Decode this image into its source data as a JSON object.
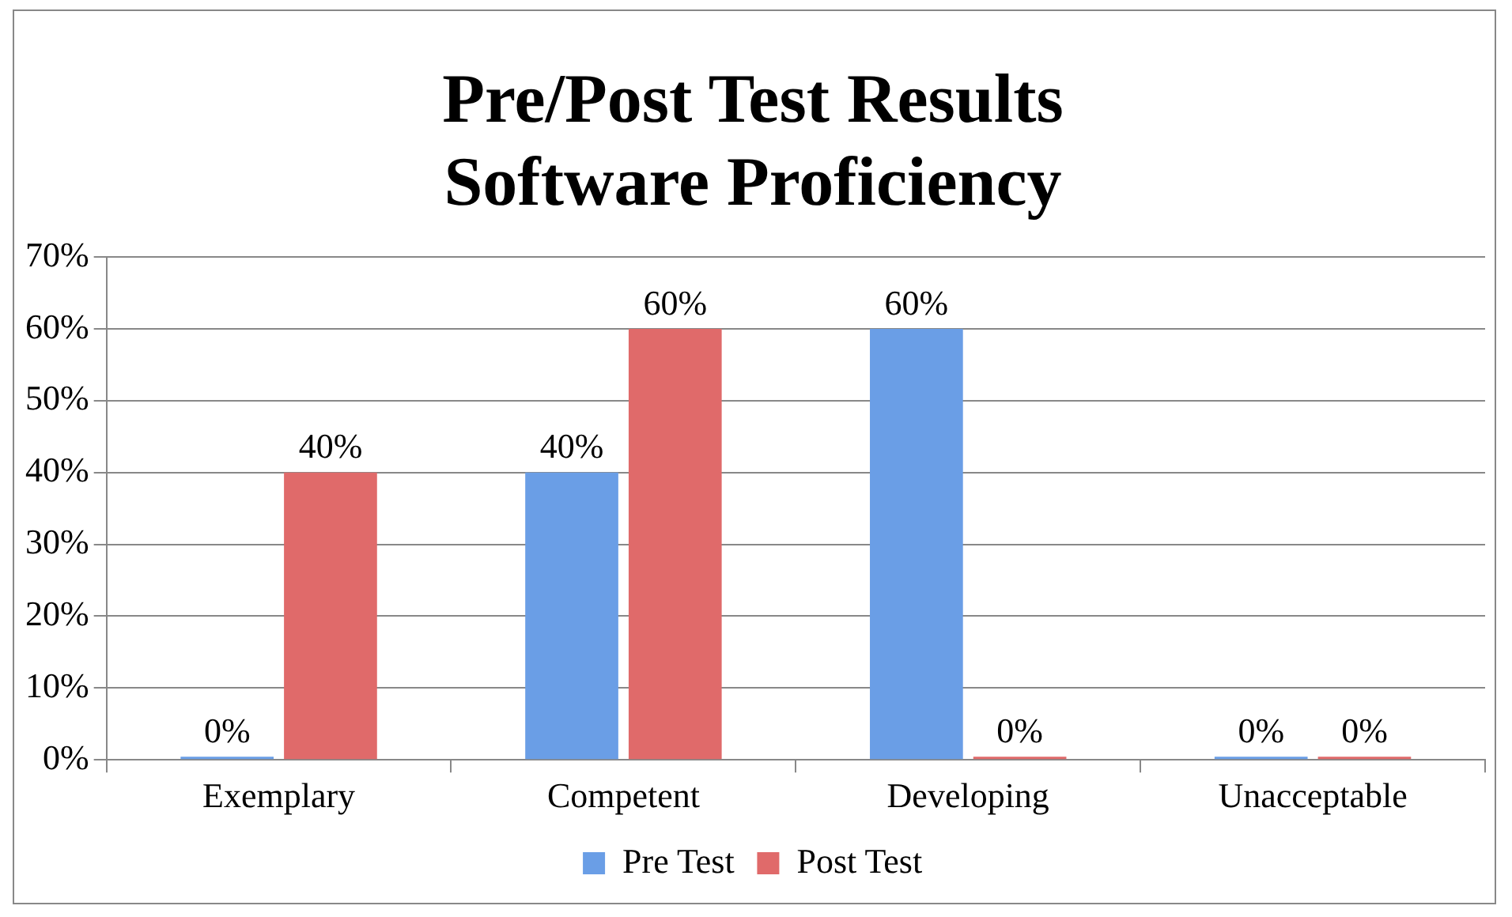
{
  "chart_data": {
    "type": "bar",
    "title": [
      "Pre/Post Test Results",
      "Software Proficiency"
    ],
    "categories": [
      "Exemplary",
      "Competent",
      "Developing",
      "Unacceptable"
    ],
    "series": [
      {
        "name": "Pre Test",
        "color": "#6a9ee6",
        "values": [
          0,
          40,
          60,
          0
        ],
        "value_labels": [
          "0%",
          "40%",
          "60%",
          "0%"
        ]
      },
      {
        "name": "Post Test",
        "color": "#e06a6a",
        "values": [
          40,
          60,
          0,
          0
        ],
        "value_labels": [
          "40%",
          "60%",
          "0%",
          "0%"
        ]
      }
    ],
    "ylim": [
      0,
      70
    ],
    "yticks": [
      {
        "value": 0,
        "label": "0%"
      },
      {
        "value": 10,
        "label": "10%"
      },
      {
        "value": 20,
        "label": "20%"
      },
      {
        "value": 30,
        "label": "30%"
      },
      {
        "value": 40,
        "label": "40%"
      },
      {
        "value": 50,
        "label": "50%"
      },
      {
        "value": 60,
        "label": "60%"
      },
      {
        "value": 70,
        "label": "70%"
      }
    ],
    "grid": "y",
    "legend": "bottom"
  }
}
